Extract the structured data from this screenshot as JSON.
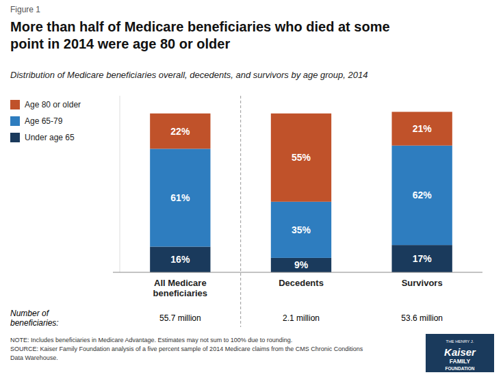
{
  "chart_data": {
    "type": "bar",
    "stacked": true,
    "title": "More than half of Medicare beneficiaries who died at some\npoint in 2014 were age 80 or older",
    "subtitle": "Distribution of Medicare beneficiaries overall, decedents, and survivors by age group, 2014",
    "categories": [
      "All Medicare\nbeneficiaries",
      "Decedents",
      "Survivors"
    ],
    "series": [
      {
        "name": "Under age 65",
        "color": "#1a3a5c",
        "values": [
          16,
          9,
          17
        ],
        "value_labels": [
          "16%",
          "9%",
          "17%"
        ]
      },
      {
        "name": "Age 65-79",
        "color": "#2e7dbf",
        "values": [
          61,
          35,
          62
        ],
        "value_labels": [
          "61%",
          "35%",
          "62%"
        ]
      },
      {
        "name": "Age 80 or older",
        "color": "#c0522a",
        "values": [
          22,
          55,
          21
        ],
        "value_labels": [
          "22%",
          "55%",
          "21%"
        ]
      }
    ],
    "ylim": [
      0,
      110
    ],
    "yticks": [],
    "tick_labels": "x",
    "grid": false,
    "legend": "upper left",
    "data_labels": true,
    "annotations": {
      "figure_label": "Figure 1",
      "count_label": "Number of\nbeneficiaries:",
      "counts": [
        "55.7 million",
        "2.1 million",
        "53.6 million"
      ],
      "note": "NOTE: Includes beneficiaries in Medicare Advantage. Estimates may not sum to 100% due to rounding.\nSOURCE: Kaiser Family Foundation analysis of a five percent sample of 2014 Medicare claims from the CMS Chronic Conditions\nData Warehouse.",
      "logo": [
        "THE HENRY J.",
        "Kaiser",
        "FAMILY",
        "FOUNDATION"
      ]
    }
  }
}
